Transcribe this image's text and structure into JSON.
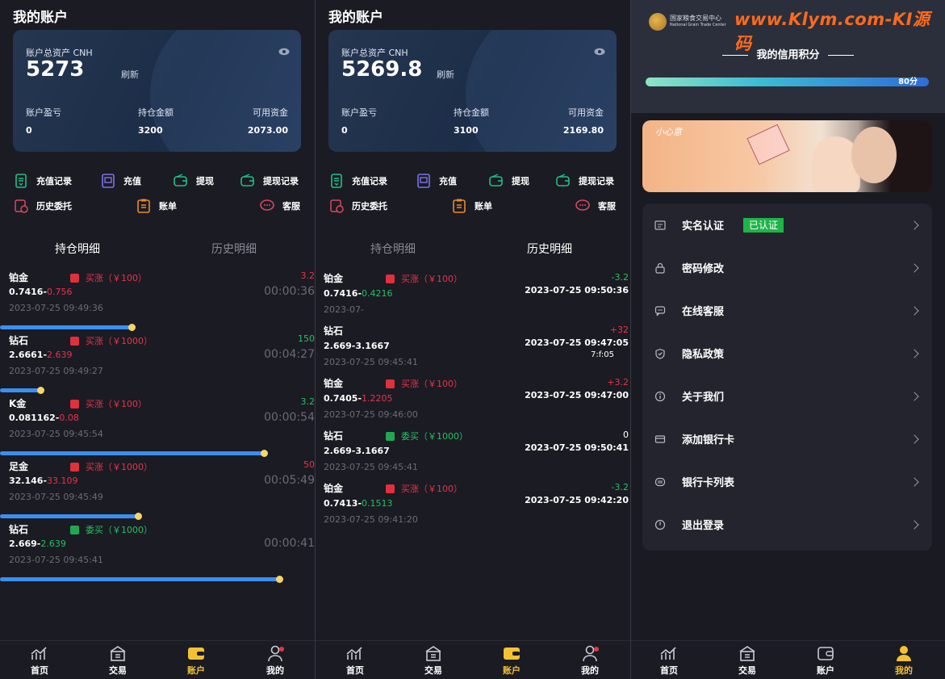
{
  "screens": [
    {
      "title": "我的账户",
      "card": {
        "total_label": "账户总资产 CNH",
        "total": "5273",
        "refresh": "刷新",
        "pl_label": "账户盈亏",
        "pos_label": "持仓金额",
        "avail_label": "可用资金",
        "pl": "0",
        "pos": "3200",
        "avail": "2073.00"
      },
      "menu": [
        "充值记录",
        "充值",
        "提现",
        "提现记录",
        "历史委托",
        "账单",
        "客服"
      ],
      "tabs": [
        "持仓明细",
        "历史明细"
      ],
      "active_tab": 0,
      "rows": [
        {
          "name": "铂金",
          "dir": "up",
          "tag": "买涨（￥100）",
          "p1": "0.7416-",
          "p2": "0.756",
          "p2c": "red",
          "time": "2023-07-25 09:49:36",
          "r": "3.2",
          "rc": "red",
          "cd": "00:00:36",
          "progress": 0.42
        },
        {
          "name": "钻石",
          "dir": "up",
          "tag": "买涨（￥1000）",
          "p1": "2.6661-",
          "p2": "2.639",
          "p2c": "red",
          "time": "2023-07-25 09:49:27",
          "r": "150",
          "rc": "green",
          "cd": "00:04:27",
          "progress": 0.13
        },
        {
          "name": "K金",
          "dir": "up",
          "tag": "买涨（￥100）",
          "p1": "0.081162-",
          "p2": "0.08",
          "p2c": "red",
          "time": "2023-07-25 09:45:54",
          "r": "3.2",
          "rc": "green",
          "cd": "00:00:54",
          "progress": 0.84
        },
        {
          "name": "足金",
          "dir": "up",
          "tag": "买涨（￥1000）",
          "p1": "32.146-",
          "p2": "33.109",
          "p2c": "red",
          "time": "2023-07-25 09:45:49",
          "r": "50",
          "rc": "red",
          "cd": "00:05:49",
          "progress": 0.44
        },
        {
          "name": "钻石",
          "dir": "dn",
          "tag": "委买（￥1000）",
          "p1": "2.669-",
          "p2": "2.639",
          "p2c": "green",
          "time": "2023-07-25 09:45:41",
          "r": "",
          "rc": "green",
          "cd": "00:00:41",
          "progress": 0.89
        }
      ]
    },
    {
      "title": "我的账户",
      "card": {
        "total_label": "账户总资产 CNH",
        "total": "5269.8",
        "refresh": "刷新",
        "pl_label": "账户盈亏",
        "pos_label": "持仓金额",
        "avail_label": "可用资金",
        "pl": "0",
        "pos": "3100",
        "avail": "2169.80"
      },
      "menu": [
        "充值记录",
        "充值",
        "提现",
        "提现记录",
        "历史委托",
        "账单",
        "客服"
      ],
      "tabs": [
        "持仓明细",
        "历史明细"
      ],
      "active_tab": 1,
      "rows": [
        {
          "name": "铂金",
          "dir": "up",
          "tag": "买涨（￥100）",
          "p1": "0.7416-",
          "p2": "0.4216",
          "p2c": "green",
          "time": "2023-07-",
          "r": "-3.2",
          "rc": "green",
          "rtime": "2023-07-25 09:50:36"
        },
        {
          "name": "钻石",
          "dir": "",
          "tag": "",
          "p1": "2.669-",
          "p2": "3.1667",
          "p2c": "white",
          "time": "2023-07-25 09:45:41",
          "r": "+32",
          "rc": "red",
          "rtime": "2023-07-25 09:47:05",
          "rtime2": "7:f:05"
        },
        {
          "name": "铂金",
          "dir": "up",
          "tag": "买涨（￥100）",
          "p1": "0.7405-",
          "p2": "1.2205",
          "p2c": "red",
          "time": "2023-07-25 09:46:00",
          "r": "+3.2",
          "rc": "red",
          "rtime": "2023-07-25 09:47:00"
        },
        {
          "name": "钻石",
          "dir": "dn",
          "tag": "委买（￥1000）",
          "p1": "2.669-",
          "p2": "3.1667",
          "p2c": "white",
          "time": "2023-07-25 09:45:41",
          "r": "0",
          "rc": "white",
          "rtime": "2023-07-25 09:50:41"
        },
        {
          "name": "铂金",
          "dir": "up",
          "tag": "买涨（￥100）",
          "p1": "0.7413-",
          "p2": "0.1513",
          "p2c": "green",
          "time": "2023-07-25 09:41:20",
          "r": "-3.2",
          "rc": "green",
          "rtime": "2023-07-25 09:42:20"
        }
      ]
    }
  ],
  "profile": {
    "logo_cn": "国家粮食交易中心",
    "logo_en": "National Grain Trade Center",
    "watermark": "www.Klym.com-KI源码",
    "credit_title": "我的信用积分",
    "credit_value": "80分",
    "credit_level": 0.8,
    "banner_text": "小心意",
    "items": [
      {
        "label": "实名认证",
        "badge": "已认证",
        "icon": "id-card-icon"
      },
      {
        "label": "密码修改",
        "icon": "lock-icon"
      },
      {
        "label": "在线客服",
        "icon": "chat-icon"
      },
      {
        "label": "隐私政策",
        "icon": "shield-icon"
      },
      {
        "label": "关于我们",
        "icon": "info-icon"
      },
      {
        "label": "添加银行卡",
        "icon": "card-icon"
      },
      {
        "label": "银行卡列表",
        "icon": "card-list-icon"
      },
      {
        "label": "退出登录",
        "icon": "logout-icon"
      }
    ]
  },
  "nav": [
    "首页",
    "交易",
    "账户",
    "我的"
  ],
  "colors": {
    "accent": "#f2c232",
    "up": "#e8334a",
    "down": "#22c25d",
    "bar": "#3b8ff0"
  }
}
